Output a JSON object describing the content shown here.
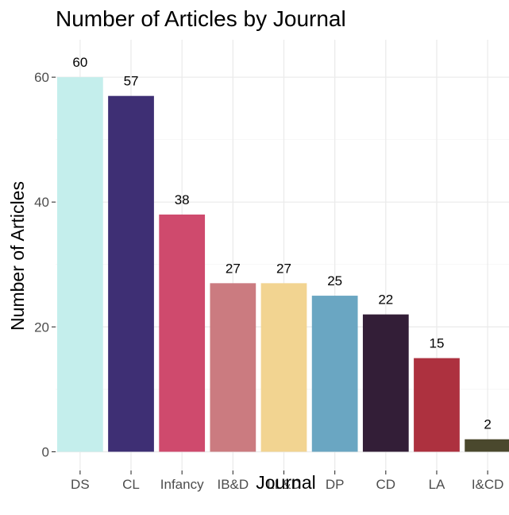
{
  "chart_data": {
    "type": "bar",
    "title": "Number of Articles by Journal",
    "xlabel": "Journal",
    "ylabel": "Number of Articles",
    "categories": [
      "DS",
      "CL",
      "Infancy",
      "IB&D",
      "LL&D",
      "DP",
      "CD",
      "LA",
      "I&CD"
    ],
    "values": [
      60,
      57,
      38,
      27,
      27,
      25,
      22,
      15,
      2
    ],
    "colors": [
      "#c4eeec",
      "#3e2f74",
      "#cf4a6d",
      "#cb7b80",
      "#f2d491",
      "#6aa6c2",
      "#331e37",
      "#ad313f",
      "#4a482d"
    ],
    "data_labels": [
      "60",
      "57",
      "38",
      "27",
      "27",
      "25",
      "22",
      "15",
      "2"
    ],
    "ylim": [
      -3,
      66
    ],
    "yticks": [
      0,
      20,
      40,
      60
    ],
    "ytick_labels": [
      "0",
      "20",
      "40",
      "60"
    ],
    "grid": true,
    "legend": "none"
  }
}
